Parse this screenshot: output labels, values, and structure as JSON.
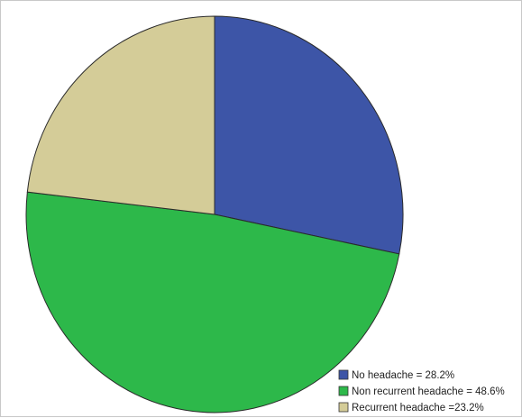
{
  "chart_data": {
    "type": "pie",
    "title": "",
    "labels": [
      "No headache",
      "Non recurrent headache",
      "Recurrent headache"
    ],
    "values": [
      28.2,
      48.6,
      23.2
    ],
    "colors": [
      "#3d55a7",
      "#2db84a",
      "#d4cc98"
    ],
    "legend_texts": [
      "No headache = 28.2%",
      "Non recurrent headache = 48.6%",
      "Recurrent headache =23.2%"
    ],
    "legend_position": "bottom-right",
    "start_angle": "12 o'clock",
    "direction": "clockwise"
  }
}
